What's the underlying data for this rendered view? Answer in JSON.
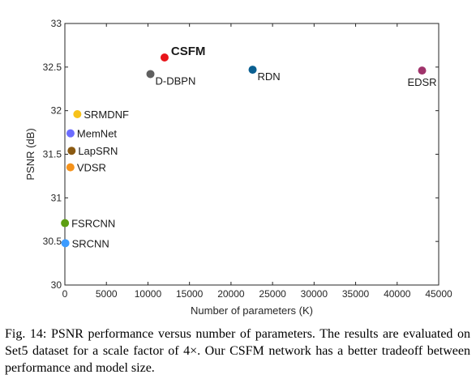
{
  "chart_data": {
    "type": "scatter",
    "xlabel": "Number of parameters (K)",
    "ylabel": "PSNR (dB)",
    "xlim": [
      0,
      45000
    ],
    "ylim": [
      30,
      33
    ],
    "xticks": [
      0,
      5000,
      10000,
      15000,
      20000,
      25000,
      30000,
      35000,
      40000,
      45000
    ],
    "yticks": [
      30,
      30.5,
      31,
      31.5,
      32,
      32.5,
      33
    ],
    "grid": false,
    "points": [
      {
        "name": "SRCNN",
        "x": 57,
        "y": 30.48,
        "color": "#3b9bff",
        "label_side": "right"
      },
      {
        "name": "FSRCNN",
        "x": 12,
        "y": 30.71,
        "color": "#5c9e12",
        "label_side": "right"
      },
      {
        "name": "VDSR",
        "x": 665,
        "y": 31.35,
        "color": "#f5921a",
        "label_side": "right"
      },
      {
        "name": "LapSRN",
        "x": 812,
        "y": 31.54,
        "color": "#8b5a12",
        "label_side": "right"
      },
      {
        "name": "MemNet",
        "x": 677,
        "y": 31.74,
        "color": "#6c6cff",
        "label_side": "right"
      },
      {
        "name": "SRMDNF",
        "x": 1500,
        "y": 31.96,
        "color": "#f7c21a",
        "label_side": "right"
      },
      {
        "name": "D-DBPN",
        "x": 10300,
        "y": 32.42,
        "color": "#5f5f5f",
        "label_side": "below-right"
      },
      {
        "name": "CSFM",
        "x": 12000,
        "y": 32.61,
        "color": "#e8141a",
        "label_side": "right",
        "highlight": true
      },
      {
        "name": "RDN",
        "x": 22600,
        "y": 32.47,
        "color": "#0a5f91",
        "label_side": "below-right"
      },
      {
        "name": "EDSR",
        "x": 43000,
        "y": 32.46,
        "color": "#a0336b",
        "label_side": "below"
      }
    ]
  },
  "caption": "Fig. 14: PSNR performance versus number of parameters. The results are evaluated on Set5 dataset for a scale factor of 4×. Our CSFM network has a better tradeoff between performance and model size."
}
